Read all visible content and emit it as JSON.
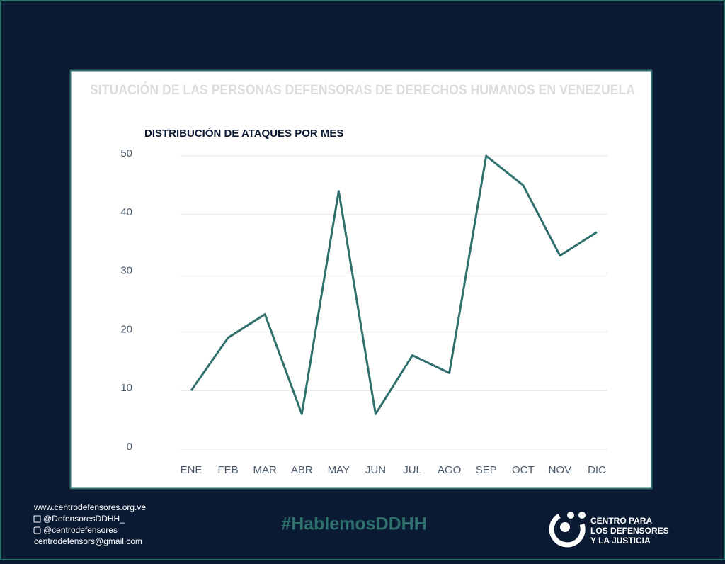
{
  "chart_data": {
    "type": "line",
    "title": "SITUACIÓN DE LAS PERSONAS DEFENSORAS DE DERECHOS HUMANOS EN VENEZUELA",
    "subtitle": "DISTRIBUCIÓN DE ATAQUES POR MES",
    "categories": [
      "ENE",
      "FEB",
      "MAR",
      "ABR",
      "MAY",
      "JUN",
      "JUL",
      "AGO",
      "SEP",
      "OCT",
      "NOV",
      "DIC"
    ],
    "values": [
      10,
      19,
      23,
      6,
      44,
      6,
      16,
      13,
      50,
      45,
      33,
      37
    ],
    "color": "#2f6f6c",
    "ylim": [
      0,
      50
    ],
    "yticks": [
      0,
      10,
      20,
      30,
      40,
      50
    ],
    "grid": true
  },
  "footer": {
    "website": "www.centrodefensores.org.ve",
    "twitter": "@DefensoresDDHH_",
    "instagram": "@centrodefensores",
    "email": "centrodefensors@gmail.com",
    "hashtag": "#HablemosDDHH",
    "logo": [
      "CENTRO PARA",
      "LOS DEFENSORES",
      "Y LA JUSTICIA"
    ]
  }
}
